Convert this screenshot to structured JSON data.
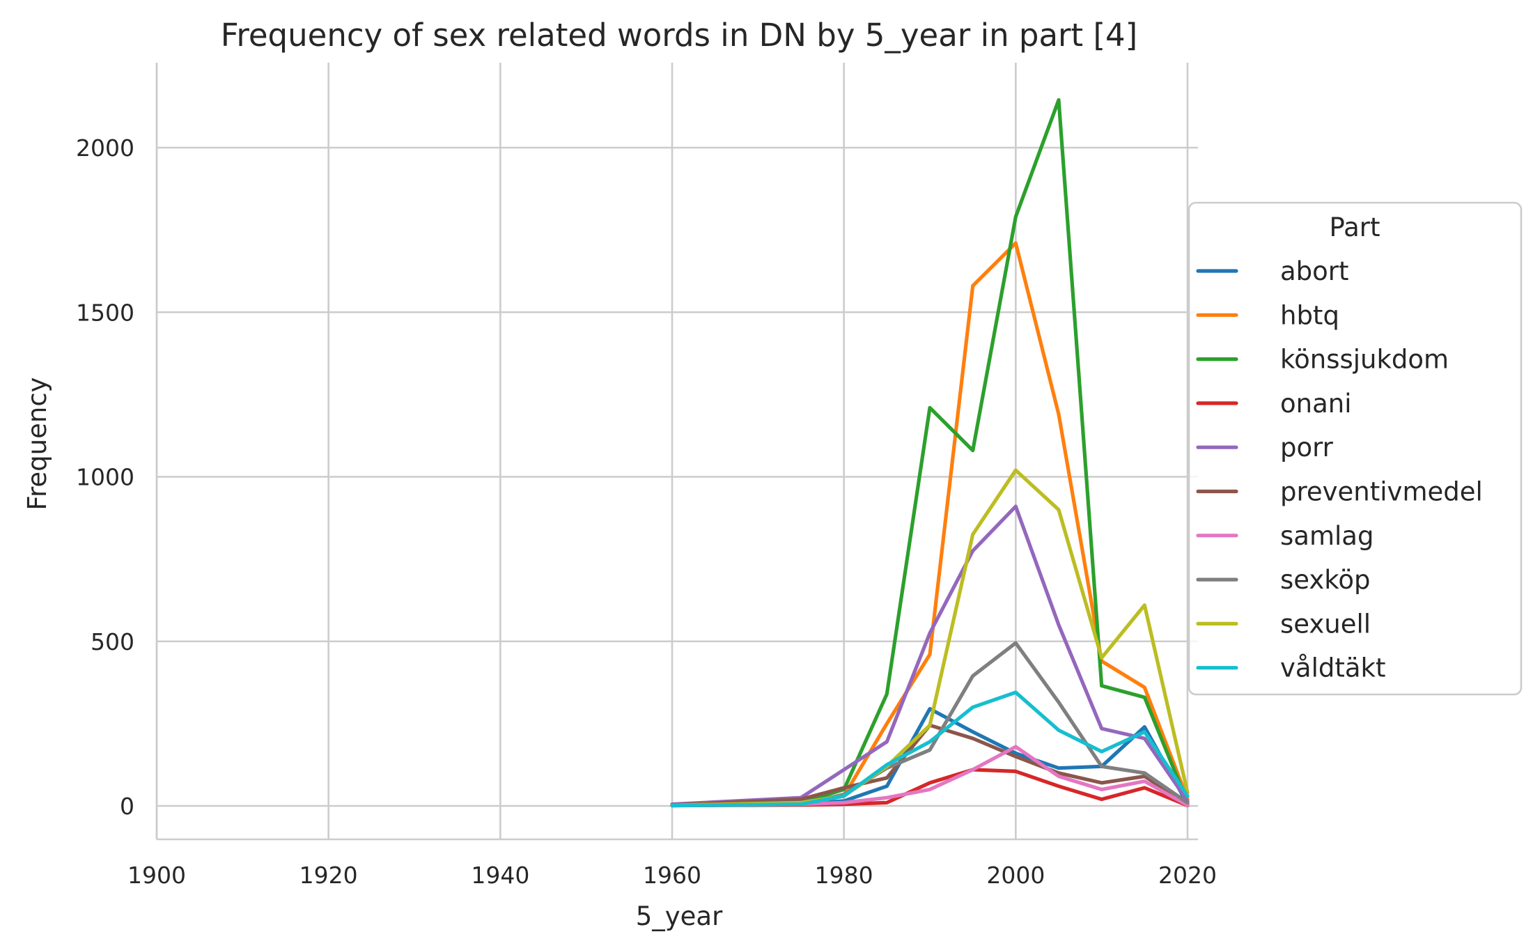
{
  "chart_data": {
    "type": "line",
    "title": "Frequency of sex related words in DN by 5_year in part [4]",
    "xlabel": "5_year",
    "ylabel": "Frequency",
    "xlim": [
      1900,
      2020
    ],
    "ylim": [
      -100,
      2250
    ],
    "xticks": [
      1900,
      1920,
      1940,
      1960,
      1980,
      2000,
      2020
    ],
    "yticks": [
      0,
      500,
      1000,
      1500,
      2000
    ],
    "grid": true,
    "legend": {
      "title": "Part",
      "placement": "center-right"
    },
    "x": [
      1960,
      1975,
      1980,
      1985,
      1990,
      1995,
      2000,
      2005,
      2010,
      2015,
      2020
    ],
    "series": [
      {
        "name": "abort",
        "color": "#1f77b4",
        "values": [
          2,
          5,
          15,
          60,
          295,
          225,
          160,
          115,
          120,
          240,
          5
        ]
      },
      {
        "name": "hbtq",
        "color": "#ff7f0e",
        "values": [
          2,
          5,
          30,
          250,
          460,
          1580,
          1710,
          1190,
          440,
          360,
          20
        ]
      },
      {
        "name": "könssjukdom",
        "color": "#2ca02c",
        "values": [
          2,
          10,
          50,
          340,
          1210,
          1080,
          1790,
          2145,
          365,
          330,
          10
        ]
      },
      {
        "name": "onani",
        "color": "#d62728",
        "values": [
          1,
          3,
          5,
          10,
          70,
          110,
          105,
          60,
          20,
          55,
          1
        ]
      },
      {
        "name": "porr",
        "color": "#9467bd",
        "values": [
          5,
          25,
          110,
          195,
          525,
          775,
          910,
          550,
          235,
          205,
          15
        ]
      },
      {
        "name": "preventivmedel",
        "color": "#8c564b",
        "values": [
          3,
          20,
          55,
          85,
          245,
          205,
          150,
          100,
          70,
          90,
          5
        ]
      },
      {
        "name": "samlag",
        "color": "#e377c2",
        "values": [
          1,
          5,
          10,
          25,
          50,
          110,
          180,
          90,
          50,
          75,
          2
        ]
      },
      {
        "name": "sexköp",
        "color": "#7f7f7f",
        "values": [
          1,
          5,
          35,
          115,
          170,
          395,
          495,
          315,
          120,
          100,
          10
        ]
      },
      {
        "name": "sexuell",
        "color": "#bcbd22",
        "values": [
          2,
          10,
          30,
          120,
          245,
          825,
          1020,
          900,
          450,
          610,
          40
        ]
      },
      {
        "name": "våldtäkt",
        "color": "#17becf",
        "values": [
          1,
          5,
          30,
          125,
          195,
          300,
          345,
          230,
          165,
          225,
          30
        ]
      }
    ]
  }
}
